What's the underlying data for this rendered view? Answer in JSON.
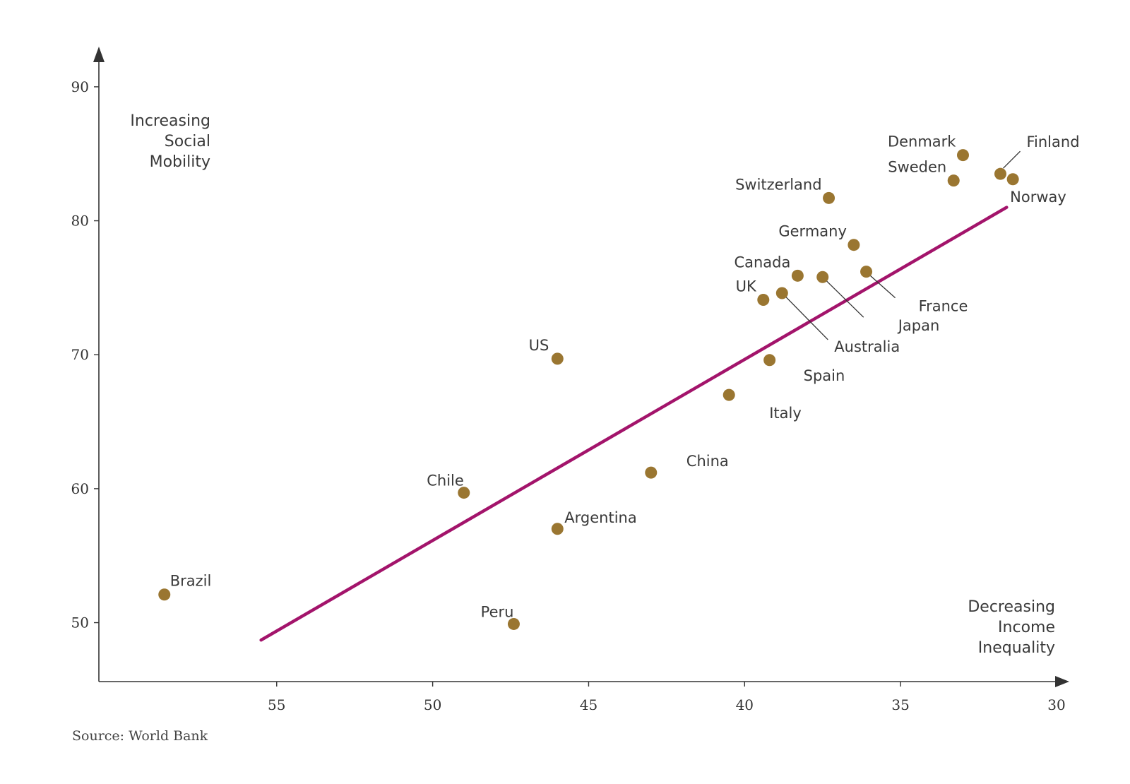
{
  "chart_data": {
    "type": "scatter",
    "title": "",
    "xlabel": "Decreasing Income Inequality",
    "ylabel": "Increasing Social Mobility",
    "x_corner_label": [
      "Decreasing",
      "Income",
      "Inequality"
    ],
    "y_corner_label": [
      "Increasing",
      "Social",
      "Mobility"
    ],
    "xlim": [
      60.7,
      30
    ],
    "ylim": [
      45.6,
      93
    ],
    "x_ticks": [
      55,
      50,
      45,
      40,
      35,
      30
    ],
    "y_ticks": [
      90,
      80,
      70,
      60,
      50
    ],
    "points": [
      {
        "name": "Denmark",
        "x": 33.0,
        "y": 84.9
      },
      {
        "name": "Finland",
        "x": 31.8,
        "y": 83.5
      },
      {
        "name": "Norway",
        "x": 31.4,
        "y": 83.1
      },
      {
        "name": "Sweden",
        "x": 33.3,
        "y": 83.0
      },
      {
        "name": "Switzerland",
        "x": 37.3,
        "y": 81.7
      },
      {
        "name": "Germany",
        "x": 36.5,
        "y": 78.2
      },
      {
        "name": "France",
        "x": 36.1,
        "y": 76.2
      },
      {
        "name": "Canada",
        "x": 38.3,
        "y": 75.9
      },
      {
        "name": "Japan",
        "x": 37.5,
        "y": 75.8
      },
      {
        "name": "Australia",
        "x": 38.8,
        "y": 74.6
      },
      {
        "name": "UK",
        "x": 39.4,
        "y": 74.1
      },
      {
        "name": "Spain",
        "x": 39.2,
        "y": 69.6
      },
      {
        "name": "US",
        "x": 46.0,
        "y": 69.7
      },
      {
        "name": "Italy",
        "x": 40.5,
        "y": 67.0
      },
      {
        "name": "China",
        "x": 43.0,
        "y": 61.2
      },
      {
        "name": "Chile",
        "x": 49.0,
        "y": 59.7
      },
      {
        "name": "Argentina",
        "x": 46.0,
        "y": 57.0
      },
      {
        "name": "Brazil",
        "x": 58.6,
        "y": 52.1
      },
      {
        "name": "Peru",
        "x": 47.4,
        "y": 49.9
      }
    ],
    "trendline": {
      "x": [
        55.5,
        31.6
      ],
      "y": [
        48.7,
        81.0
      ]
    },
    "point_color": "#9a7631",
    "trend_color": "#a3146b"
  },
  "source": "Source: World Bank"
}
